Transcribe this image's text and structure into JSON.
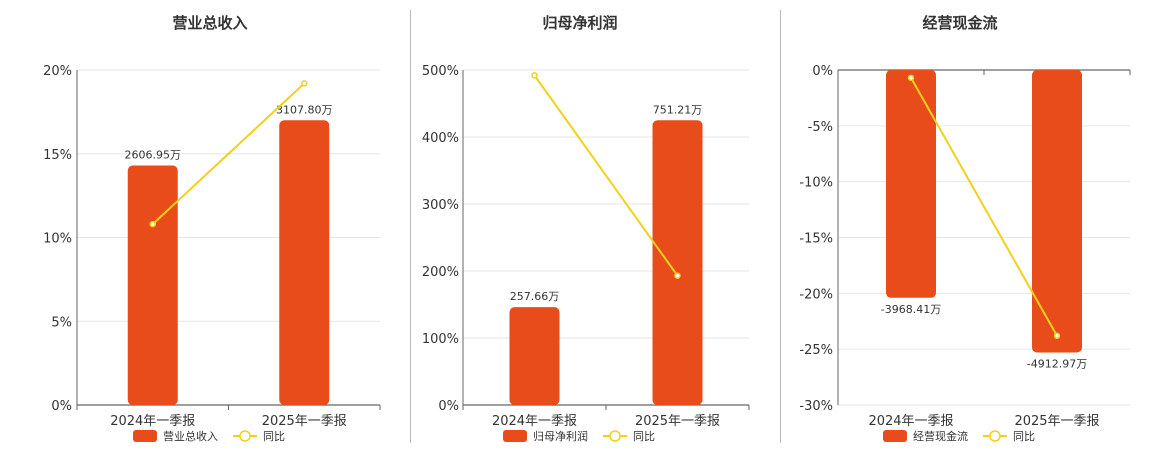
{
  "colors": {
    "bar": "#e84c1a",
    "line": "#f2d01b",
    "grid": "#e6e6e6",
    "axis": "#666666",
    "separator": "#bbbbbb"
  },
  "chart_data": [
    {
      "type": "bar",
      "title": "营业总收入",
      "categories": [
        "2024年一季报",
        "2025年一季报"
      ],
      "series": [
        {
          "name": "营业总收入",
          "type": "bar",
          "values": [
            14.3,
            17.0
          ],
          "labels": [
            "2606.95万",
            "3107.80万"
          ]
        },
        {
          "name": "同比",
          "type": "line",
          "values": [
            10.8,
            19.2
          ]
        }
      ],
      "ylim": [
        0,
        20
      ],
      "yticks": [
        "0%",
        "5%",
        "10%",
        "15%",
        "20%"
      ],
      "grid": true,
      "legend": "bottom"
    },
    {
      "type": "bar",
      "title": "归母净利润",
      "categories": [
        "2024年一季报",
        "2025年一季报"
      ],
      "series": [
        {
          "name": "归母净利润",
          "type": "bar",
          "values": [
            146,
            425
          ],
          "labels": [
            "257.66万",
            "751.21万"
          ]
        },
        {
          "name": "同比",
          "type": "line",
          "values": [
            492,
            193
          ]
        }
      ],
      "ylim": [
        0,
        500
      ],
      "yticks": [
        "0%",
        "100%",
        "200%",
        "300%",
        "400%",
        "500%"
      ],
      "grid": true,
      "legend": "bottom"
    },
    {
      "type": "bar",
      "title": "经营现金流",
      "categories": [
        "2024年一季报",
        "2025年一季报"
      ],
      "series": [
        {
          "name": "经营现金流",
          "type": "bar",
          "values": [
            -20.4,
            -25.3
          ],
          "labels": [
            "-3968.41万",
            "-4912.97万"
          ]
        },
        {
          "name": "同比",
          "type": "line",
          "values": [
            -0.7,
            -23.8
          ]
        }
      ],
      "ylim": [
        -30,
        0
      ],
      "yticks": [
        "-30%",
        "-25%",
        "-20%",
        "-15%",
        "-10%",
        "-5%",
        "0%"
      ],
      "grid": true,
      "legend": "bottom"
    }
  ]
}
